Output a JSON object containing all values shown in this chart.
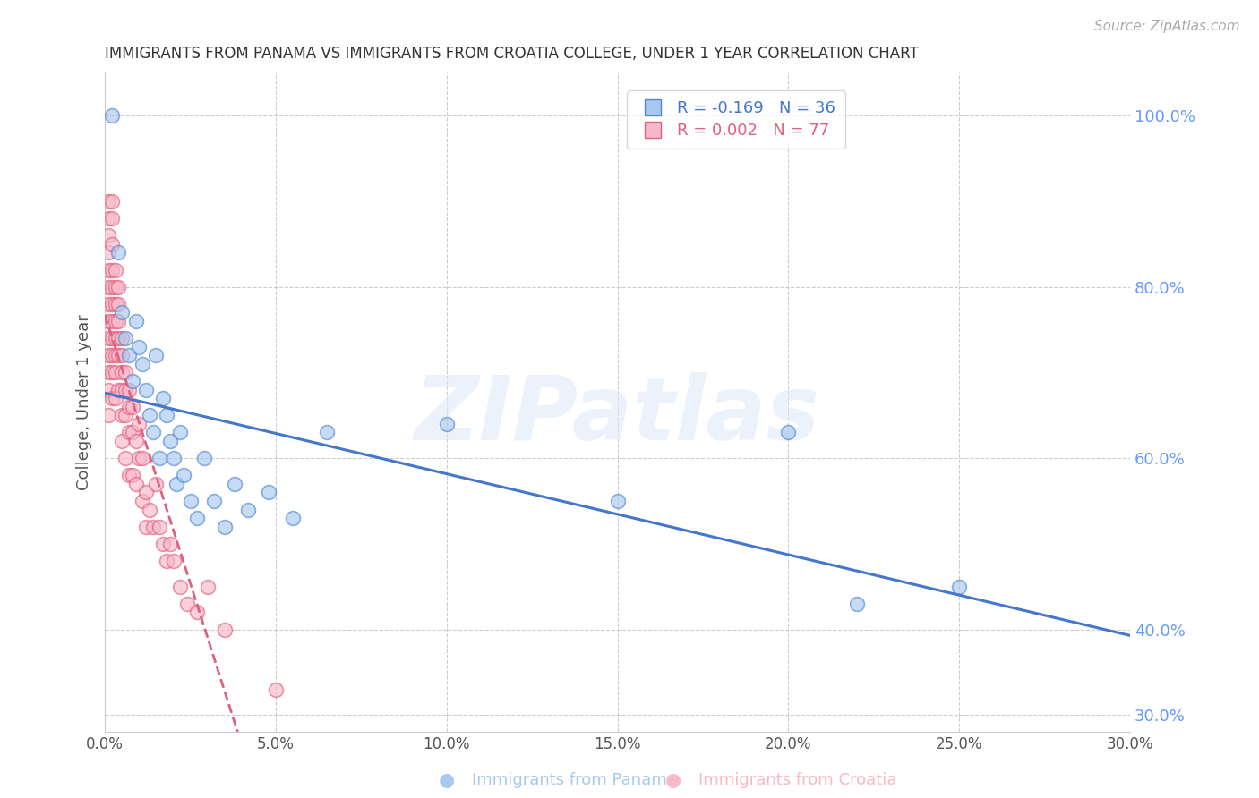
{
  "title": "IMMIGRANTS FROM PANAMA VS IMMIGRANTS FROM CROATIA COLLEGE, UNDER 1 YEAR CORRELATION CHART",
  "source": "Source: ZipAtlas.com",
  "ylabel": "College, Under 1 year",
  "watermark": "ZIPatlas",
  "legend_label_panama": "R = -0.169   N = 36",
  "legend_label_croatia": "R = 0.002   N = 77",
  "panama_color": "#a8c8f0",
  "panama_edge": "#5588cc",
  "croatia_color": "#f8b8c8",
  "croatia_edge": "#e06080",
  "trend_blue": "#4477cc",
  "trend_pink": "#e06080",
  "axis_color": "#6699ff",
  "grid_color": "#cccccc",
  "title_color": "#333333",
  "source_color": "#aaaaaa",
  "bg_color": "#ffffff",
  "xlim": [
    0.0,
    0.3
  ],
  "ylim": [
    0.28,
    1.05
  ],
  "panama_x": [
    0.002,
    0.004,
    0.005,
    0.006,
    0.007,
    0.008,
    0.009,
    0.01,
    0.011,
    0.012,
    0.013,
    0.014,
    0.015,
    0.016,
    0.017,
    0.018,
    0.019,
    0.02,
    0.021,
    0.022,
    0.023,
    0.025,
    0.027,
    0.029,
    0.032,
    0.035,
    0.038,
    0.042,
    0.048,
    0.055,
    0.065,
    0.1,
    0.15,
    0.2,
    0.22,
    0.25
  ],
  "panama_y": [
    1.0,
    0.84,
    0.77,
    0.74,
    0.72,
    0.69,
    0.76,
    0.73,
    0.71,
    0.68,
    0.65,
    0.63,
    0.72,
    0.6,
    0.67,
    0.65,
    0.62,
    0.6,
    0.57,
    0.63,
    0.58,
    0.55,
    0.53,
    0.6,
    0.55,
    0.52,
    0.57,
    0.54,
    0.56,
    0.53,
    0.63,
    0.64,
    0.55,
    0.63,
    0.43,
    0.45
  ],
  "croatia_x": [
    0.001,
    0.001,
    0.001,
    0.001,
    0.001,
    0.001,
    0.001,
    0.001,
    0.001,
    0.001,
    0.001,
    0.001,
    0.001,
    0.002,
    0.002,
    0.002,
    0.002,
    0.002,
    0.002,
    0.002,
    0.002,
    0.002,
    0.002,
    0.002,
    0.003,
    0.003,
    0.003,
    0.003,
    0.003,
    0.003,
    0.003,
    0.003,
    0.004,
    0.004,
    0.004,
    0.004,
    0.004,
    0.004,
    0.005,
    0.005,
    0.005,
    0.005,
    0.005,
    0.005,
    0.006,
    0.006,
    0.006,
    0.006,
    0.007,
    0.007,
    0.007,
    0.007,
    0.008,
    0.008,
    0.008,
    0.009,
    0.009,
    0.01,
    0.01,
    0.011,
    0.011,
    0.012,
    0.012,
    0.013,
    0.014,
    0.015,
    0.016,
    0.017,
    0.018,
    0.019,
    0.02,
    0.022,
    0.024,
    0.027,
    0.03,
    0.035,
    0.05
  ],
  "croatia_y": [
    0.9,
    0.88,
    0.86,
    0.84,
    0.82,
    0.8,
    0.78,
    0.76,
    0.74,
    0.72,
    0.7,
    0.68,
    0.65,
    0.9,
    0.88,
    0.85,
    0.82,
    0.8,
    0.78,
    0.76,
    0.74,
    0.72,
    0.7,
    0.67,
    0.82,
    0.8,
    0.78,
    0.76,
    0.74,
    0.72,
    0.7,
    0.67,
    0.8,
    0.78,
    0.76,
    0.74,
    0.72,
    0.68,
    0.74,
    0.72,
    0.7,
    0.68,
    0.65,
    0.62,
    0.7,
    0.68,
    0.65,
    0.6,
    0.68,
    0.66,
    0.63,
    0.58,
    0.66,
    0.63,
    0.58,
    0.62,
    0.57,
    0.64,
    0.6,
    0.6,
    0.55,
    0.56,
    0.52,
    0.54,
    0.52,
    0.57,
    0.52,
    0.5,
    0.48,
    0.5,
    0.48,
    0.45,
    0.43,
    0.42,
    0.45,
    0.4,
    0.33
  ]
}
